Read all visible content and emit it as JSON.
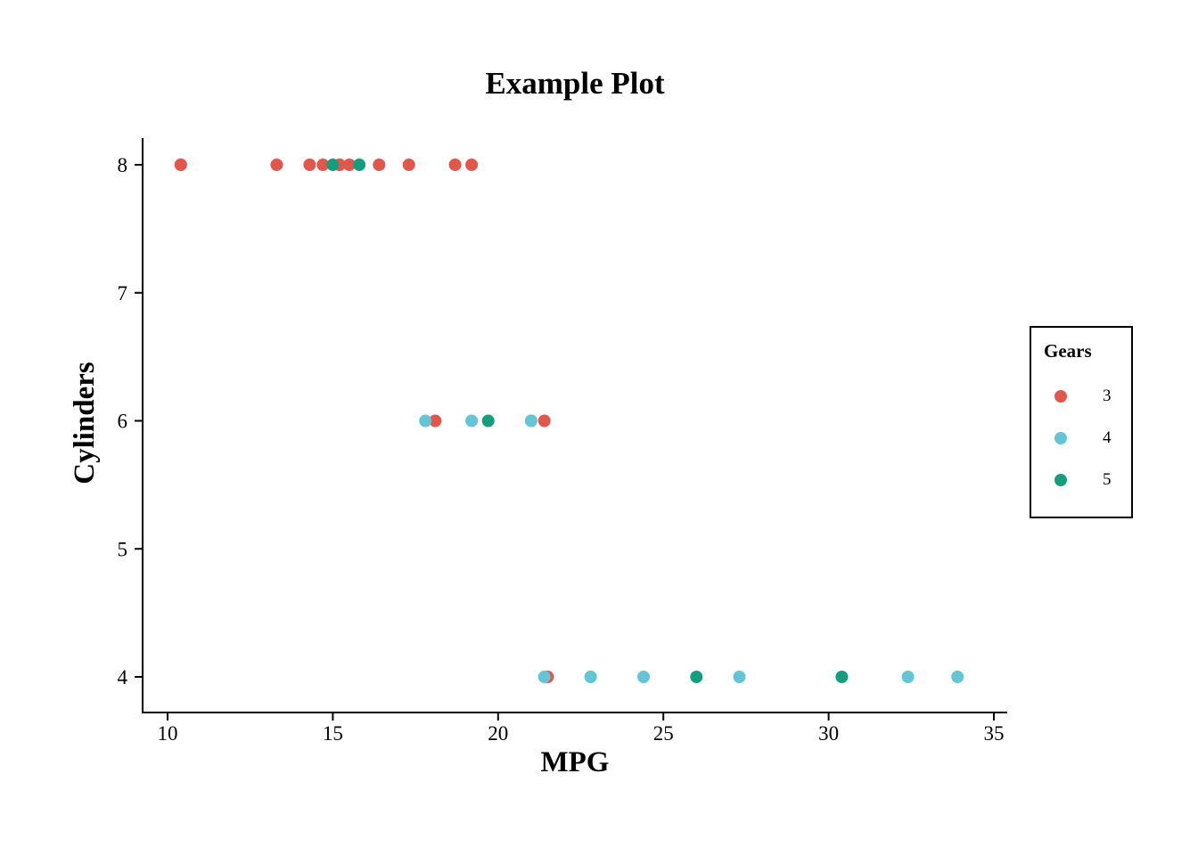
{
  "chart_data": {
    "type": "scatter",
    "title": "Example Plot",
    "xlabel": "MPG",
    "ylabel": "Cylinders",
    "xlim": [
      9.2,
      35.8
    ],
    "ylim": [
      3.8,
      8.2
    ],
    "x_ticks": [
      10,
      15,
      20,
      25,
      30,
      35
    ],
    "y_ticks": [
      4,
      5,
      6,
      7,
      8
    ],
    "grid": "off",
    "legend": {
      "title": "Gears",
      "position": "right"
    },
    "series": [
      {
        "name": "3",
        "color": "#E2574C",
        "points": [
          [
            10.4,
            8
          ],
          [
            10.4,
            8
          ],
          [
            13.3,
            8
          ],
          [
            14.3,
            8
          ],
          [
            14.7,
            8
          ],
          [
            15.2,
            8
          ],
          [
            15.2,
            8
          ],
          [
            15.5,
            8
          ],
          [
            16.4,
            8
          ],
          [
            17.3,
            8
          ],
          [
            18.7,
            8
          ],
          [
            19.2,
            8
          ],
          [
            18.1,
            6
          ],
          [
            21.4,
            6
          ],
          [
            21.5,
            4
          ]
        ]
      },
      {
        "name": "4",
        "color": "#64C5D6",
        "points": [
          [
            17.8,
            6
          ],
          [
            19.2,
            6
          ],
          [
            21.0,
            6
          ],
          [
            21.0,
            6
          ],
          [
            21.4,
            4
          ],
          [
            22.8,
            4
          ],
          [
            22.8,
            4
          ],
          [
            24.4,
            4
          ],
          [
            27.3,
            4
          ],
          [
            32.4,
            4
          ],
          [
            33.9,
            4
          ]
        ]
      },
      {
        "name": "5",
        "color": "#149E7D",
        "points": [
          [
            15.0,
            8
          ],
          [
            15.8,
            8
          ],
          [
            19.7,
            6
          ],
          [
            26.0,
            4
          ],
          [
            30.4,
            4
          ]
        ]
      }
    ]
  }
}
